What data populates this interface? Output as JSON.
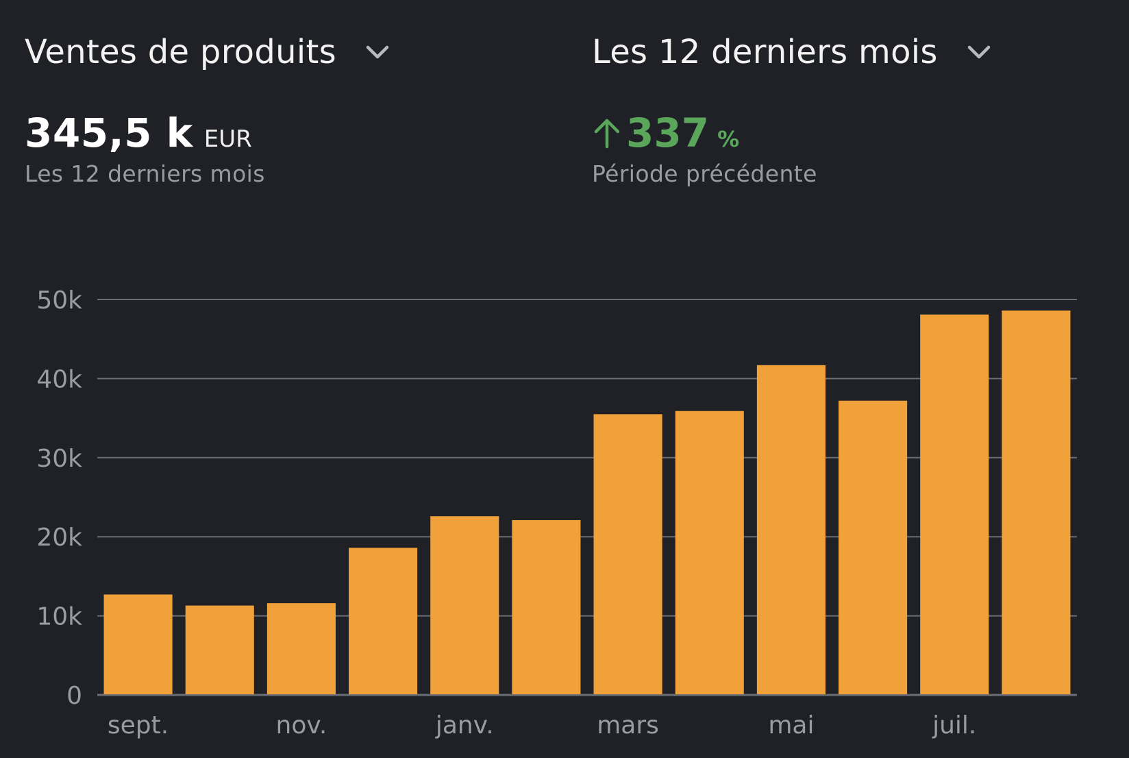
{
  "header": {
    "metric_label": "Ventes de produits",
    "period_label": "Les 12 derniers mois"
  },
  "kpi": {
    "total_value": "345,5 k",
    "total_unit": "EUR",
    "total_caption": "Les 12 derniers mois",
    "change_value": "337",
    "change_unit": "%",
    "change_caption": "Période précédente",
    "change_direction": "up"
  },
  "colors": {
    "background": "#1f2126",
    "bar": "#f0a13a",
    "grid": "#6b6e74",
    "tick_text": "#9a9ca2",
    "positive": "#5aa65a"
  },
  "chart_data": {
    "type": "bar",
    "categories": [
      "sept.",
      "",
      "nov.",
      "",
      "janv.",
      "",
      "mars",
      "",
      "mai",
      "",
      "juil.",
      ""
    ],
    "values": [
      12700,
      11300,
      11600,
      18600,
      22600,
      22100,
      35500,
      35900,
      41700,
      37200,
      48100,
      48600
    ],
    "y_ticks": [
      0,
      10000,
      20000,
      30000,
      40000,
      50000
    ],
    "y_tick_labels": [
      "0",
      "10k",
      "20k",
      "30k",
      "40k",
      "50k"
    ],
    "ylim": [
      0,
      50000
    ],
    "grid": true,
    "title": "",
    "xlabel": "",
    "ylabel": ""
  }
}
